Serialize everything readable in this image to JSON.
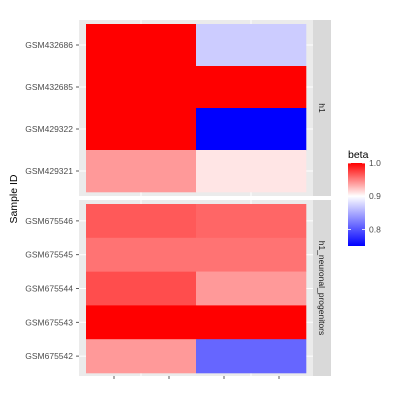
{
  "chart_data": {
    "type": "heatmap",
    "ylabel": "Sample ID",
    "xlabel": "",
    "legend": {
      "title": "beta",
      "position": "right",
      "range": [
        0.75,
        1.0
      ],
      "ticks": [
        0.8,
        0.9,
        1.0
      ],
      "tick_labels": [
        "0.8",
        "0.9",
        "1.0"
      ],
      "colors": {
        "low": "#0000ff",
        "mid": "#ffffff",
        "high": "#ff0000"
      },
      "midpoint": 0.9
    },
    "columns": [
      "",
      ""
    ],
    "panels": [
      {
        "label": "h1",
        "rows": [
          "GSM432686",
          "GSM432685",
          "GSM429322",
          "GSM429321"
        ],
        "values": [
          [
            1.0,
            0.87
          ],
          [
            1.0,
            1.0
          ],
          [
            1.0,
            0.75
          ],
          [
            0.94,
            0.91
          ]
        ]
      },
      {
        "label": "h1_neuronal_progenitors",
        "rows": [
          "GSM675546",
          "GSM675545",
          "GSM675544",
          "GSM675543",
          "GSM675542"
        ],
        "values": [
          [
            0.965,
            0.96
          ],
          [
            0.955,
            0.955
          ],
          [
            0.97,
            0.94
          ],
          [
            1.0,
            1.0
          ],
          [
            0.94,
            0.81
          ]
        ]
      }
    ]
  }
}
